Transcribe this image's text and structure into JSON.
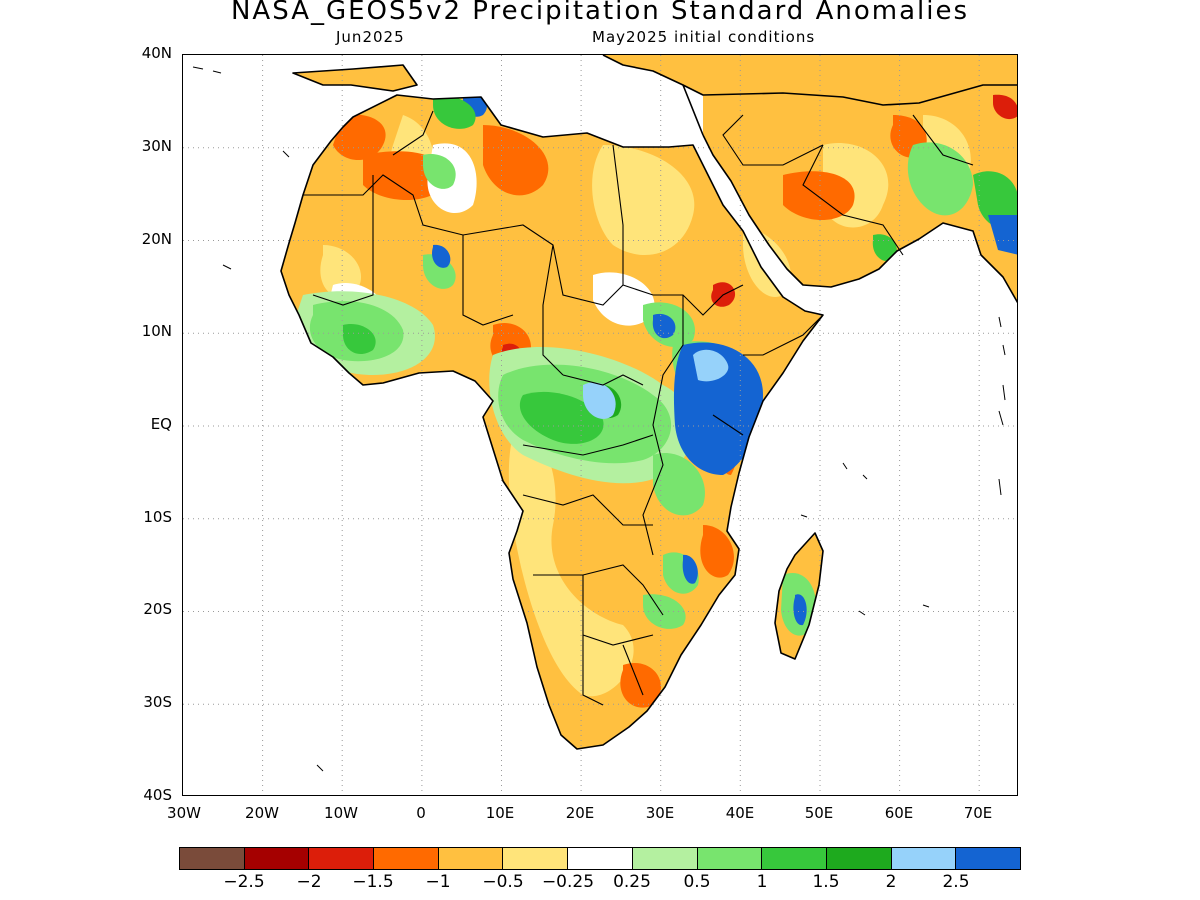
{
  "title": "NASA_GEOS5v2 Precipitation Standard Anomalies",
  "subtitle_left": "Jun2025",
  "subtitle_right": "May2025 initial conditions",
  "map": {
    "region": "Africa",
    "lon_range": [
      -30,
      75
    ],
    "lat_range": [
      -40,
      40
    ],
    "y_axis_labels": [
      "40N",
      "30N",
      "20N",
      "10N",
      "EQ",
      "10S",
      "20S",
      "30S",
      "40S"
    ],
    "x_axis_labels": [
      "30W",
      "20W",
      "10W",
      "0",
      "10E",
      "20E",
      "30E",
      "40E",
      "50E",
      "60E",
      "70E"
    ],
    "gridlines": "dotted",
    "colors": {
      "land_base": "#ffc040",
      "ocean": "#ffffff",
      "coast": "#000000"
    }
  },
  "colorbar": {
    "colors": [
      "#7a4b3a",
      "#a50000",
      "#dc1e0a",
      "#ff6a00",
      "#ffc040",
      "#ffe47a",
      "#ffffff",
      "#b4f0a0",
      "#78e46e",
      "#37c83c",
      "#1eaa1e",
      "#96d2fa",
      "#1464d2"
    ],
    "labels": [
      "-2.5",
      "-2",
      "-1.5",
      "-1",
      "-0.5",
      "-0.25",
      "0.25",
      "0.5",
      "1",
      "1.5",
      "2",
      "2.5"
    ]
  }
}
